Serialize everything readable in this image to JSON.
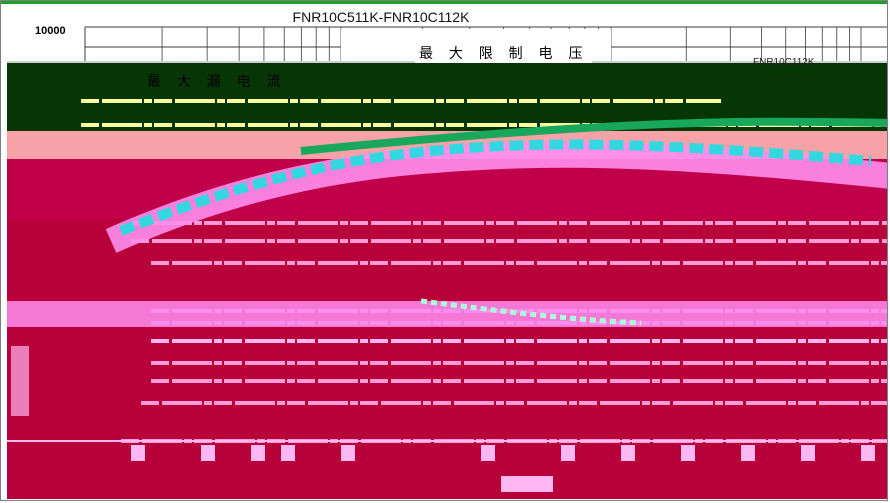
{
  "chart_data": {
    "type": "line",
    "title": "FNR10C511K-FNR10C112K",
    "y_top_tick": "10000",
    "annotations": {
      "max_clamp_voltage": "最 大 限 制 电 压",
      "max_leak_current": "最 大 漏 电 流",
      "model_label": "FNR10C112K"
    },
    "colors": {
      "band_dark": "#063606",
      "band_pink": "#f7a1a8",
      "band_crimson": "#b8003a",
      "band_magenta": "#c00048",
      "curve_pink": "#ff8ef0",
      "curve_cyan": "#32d7e0",
      "curve_green": "#19a75b",
      "curve_yellow": "#fdfba0",
      "grid": "#3b3b3b"
    }
  }
}
